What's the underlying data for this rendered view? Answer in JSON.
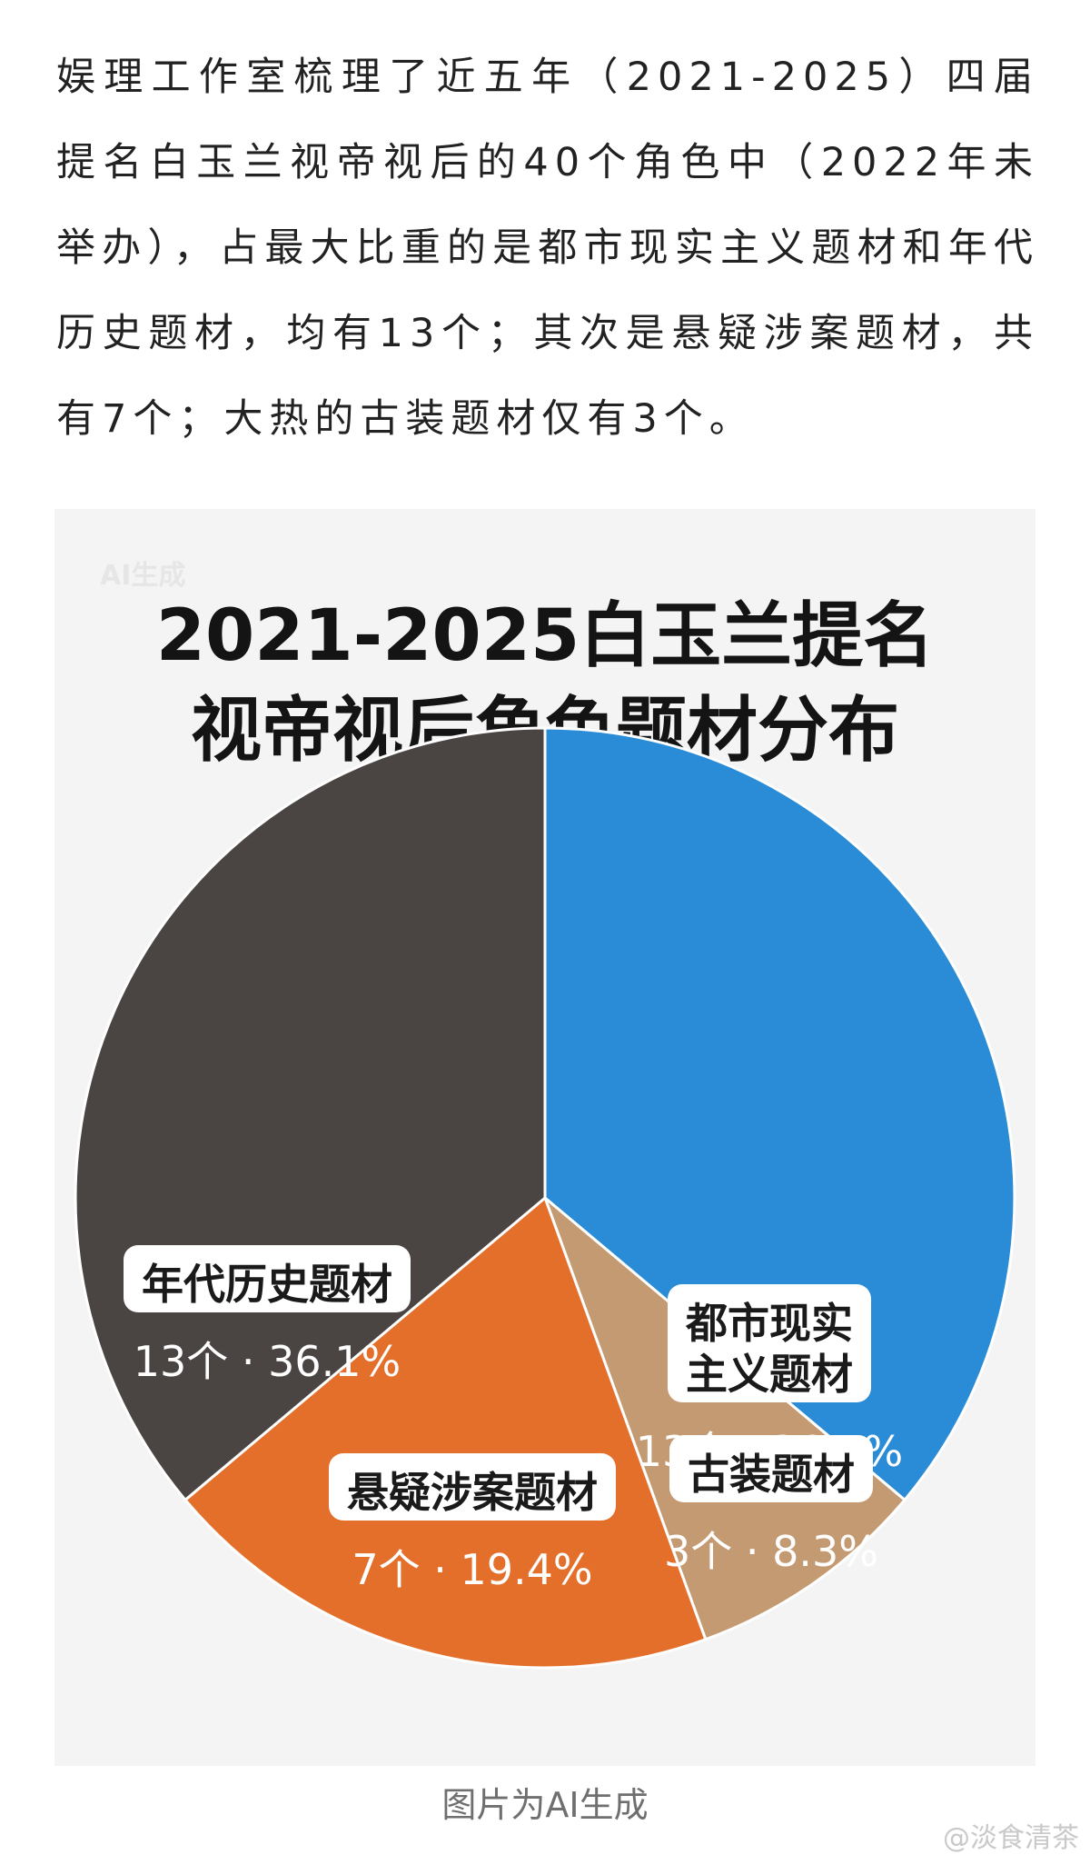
{
  "post": {
    "text": "娱理工作室梳理了近五年（2021-2025）四届提名白玉兰视帝视后的40个角色中（2022年未举办），占最大比重的是都市现实主义题材和年代历史题材，均有13个；其次是悬疑涉案题材，共有7个；大热的古装题材仅有3个。"
  },
  "figure": {
    "ai_mark": "AI生成",
    "caption": "图片为AI生成"
  },
  "chart_data": {
    "type": "pie",
    "title_lines": [
      "2021-2025白玉兰提名",
      "视帝视后角色题材分布"
    ],
    "slices": [
      {
        "label_lines": [
          "都市现实",
          "主义题材"
        ],
        "count": 13,
        "value_label": "13个 · 36.1%",
        "percent": 36.1,
        "color": "#2a8bd6"
      },
      {
        "label_lines": [
          "古装题材"
        ],
        "count": 3,
        "value_label": "3个 · 8.3%",
        "percent": 8.3,
        "color": "#c49a72"
      },
      {
        "label_lines": [
          "悬疑涉案题材"
        ],
        "count": 7,
        "value_label": "7个 · 19.4%",
        "percent": 19.4,
        "color": "#e36f2a"
      },
      {
        "label_lines": [
          "年代历史题材"
        ],
        "count": 13,
        "value_label": "13个 · 36.1%",
        "percent": 36.1,
        "color": "#4a4542"
      }
    ],
    "value_label_colors": [
      "#ffffff",
      "#ffffff",
      "#ffffff",
      "#ffffff"
    ]
  },
  "watermark": "@淡食清茶"
}
